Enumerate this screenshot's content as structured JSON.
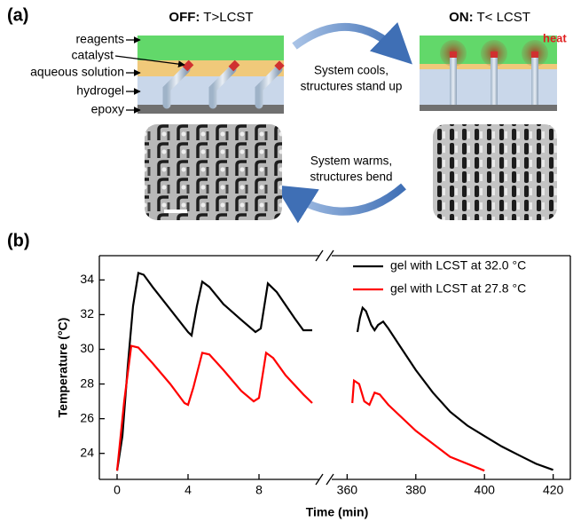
{
  "diagram": {
    "panel_label": "(a)",
    "off_title": {
      "state": "OFF:",
      "condition": " T>LCST"
    },
    "on_title": {
      "state": "ON:",
      "condition": " T< LCST"
    },
    "layer_labels": [
      "reagents",
      "catalyst",
      "aqueous solution",
      "hydrogel",
      "epoxy"
    ],
    "heat": "heat",
    "cool_text": [
      "System cools,",
      "structures stand up"
    ],
    "warm_text": [
      "System warms,",
      "structures bend"
    ]
  },
  "chart_data": {
    "type": "line",
    "panel_label": "(b)",
    "xlabel": "Time (min)",
    "ylabel": "Temperature (°C)",
    "xlim": [
      -1,
      425
    ],
    "x_break": [
      11.5,
      355
    ],
    "xticks": [
      0,
      4,
      8,
      360,
      380,
      400,
      420
    ],
    "ylim": [
      22.5,
      35.4
    ],
    "yticks": [
      24,
      26,
      28,
      30,
      32,
      34
    ],
    "legend": "upper right",
    "series": [
      {
        "name": "gel with LCST at 32.0 °C",
        "color": "#000000",
        "x": [
          0,
          0.3,
          0.6,
          0.9,
          1.2,
          1.5,
          2,
          3,
          4,
          4.2,
          4.5,
          4.8,
          5.2,
          6,
          7,
          7.8,
          8.1,
          8.5,
          9,
          10,
          10.5,
          11,
          null,
          363,
          363.7,
          364.5,
          365.5,
          367,
          368,
          369,
          370.5,
          372,
          375,
          380,
          385,
          390,
          395,
          400,
          405,
          410,
          415,
          420
        ],
        "values": [
          23,
          25,
          29,
          32.5,
          34.4,
          34.3,
          33.6,
          32.3,
          31,
          30.8,
          32.5,
          33.9,
          33.6,
          32.6,
          31.7,
          31.0,
          31.2,
          33.8,
          33.3,
          31.8,
          31.1,
          31.1,
          null,
          31,
          31.8,
          32.4,
          32.2,
          31.4,
          31.1,
          31.4,
          31.6,
          31.2,
          30.3,
          28.8,
          27.5,
          26.4,
          25.6,
          25.0,
          24.4,
          23.9,
          23.4,
          23.05
        ]
      },
      {
        "name": "gel with LCST at 27.8 °C",
        "color": "#ff0000",
        "x": [
          0,
          0.4,
          0.8,
          1.2,
          2,
          3,
          3.8,
          4,
          4.3,
          4.8,
          5.2,
          6,
          7,
          7.7,
          8,
          8.4,
          8.8,
          9.5,
          10.5,
          11,
          null,
          361.5,
          362,
          363.5,
          365,
          366.5,
          368,
          369.5,
          372,
          380,
          390,
          400
        ],
        "values": [
          23,
          27,
          30.2,
          30.1,
          29.2,
          28,
          26.9,
          26.8,
          27.8,
          29.8,
          29.7,
          28.8,
          27.6,
          27.0,
          27.2,
          29.8,
          29.5,
          28.5,
          27.4,
          26.9,
          null,
          26.9,
          28.2,
          28.0,
          27.0,
          26.8,
          27.5,
          27.4,
          26.8,
          25.3,
          23.8,
          23.0
        ]
      }
    ]
  }
}
